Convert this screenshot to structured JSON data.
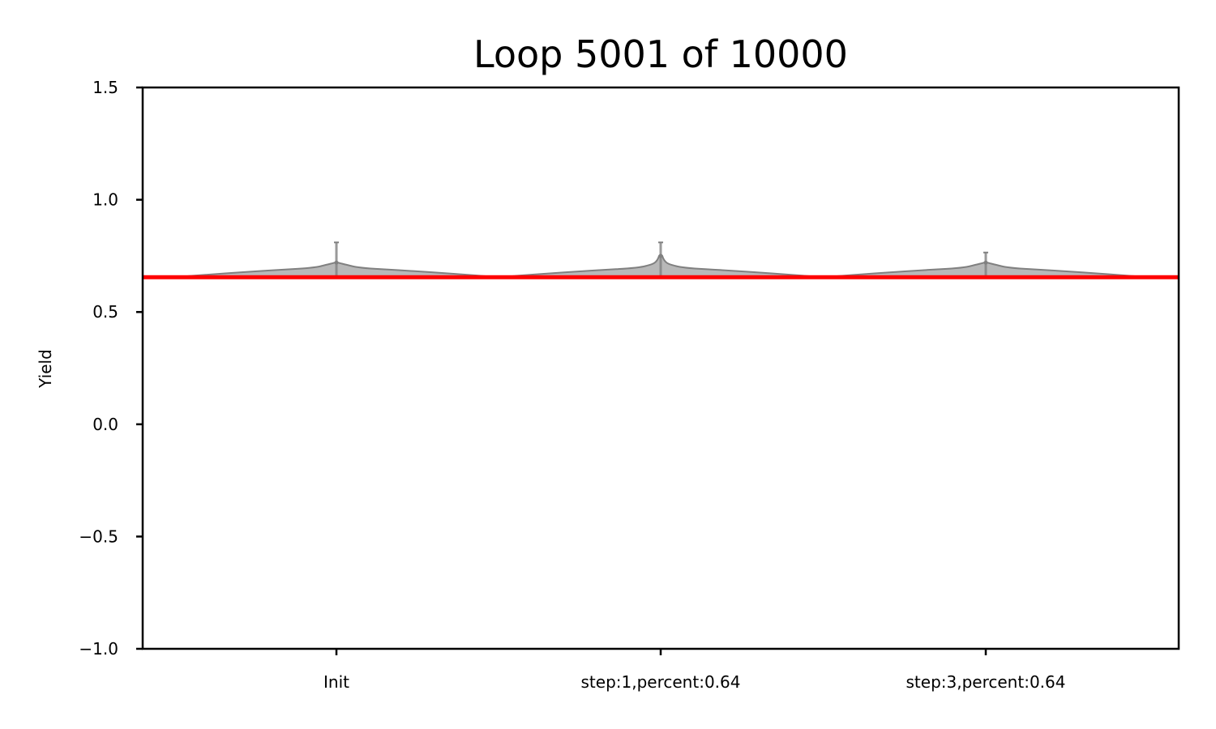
{
  "chart_data": {
    "type": "violin",
    "title": "Loop 5001 of 10000",
    "xlabel": "",
    "ylabel": "Yield",
    "ylim": [
      -1.0,
      1.5
    ],
    "yticks": [
      -1.0,
      -0.5,
      0.0,
      0.5,
      1.0,
      1.5
    ],
    "ytick_labels": [
      "−1.0",
      "−0.5",
      "0.0",
      "0.5",
      "1.0",
      "1.5"
    ],
    "categories": [
      "Init",
      "step:1,percent:0.64",
      "step:3,percent:0.64"
    ],
    "violins": [
      {
        "category": "Init",
        "min": 0.655,
        "max": 0.81,
        "median": 0.72
      },
      {
        "category": "step:1,percent:0.64",
        "min": 0.655,
        "max": 0.81,
        "median": 0.75
      },
      {
        "category": "step:3,percent:0.64",
        "min": 0.655,
        "max": 0.765,
        "median": 0.72
      }
    ],
    "reference_line": {
      "y": 0.655,
      "color": "#ff0000"
    },
    "violin_color": "#a0a0a0",
    "grid": false
  }
}
